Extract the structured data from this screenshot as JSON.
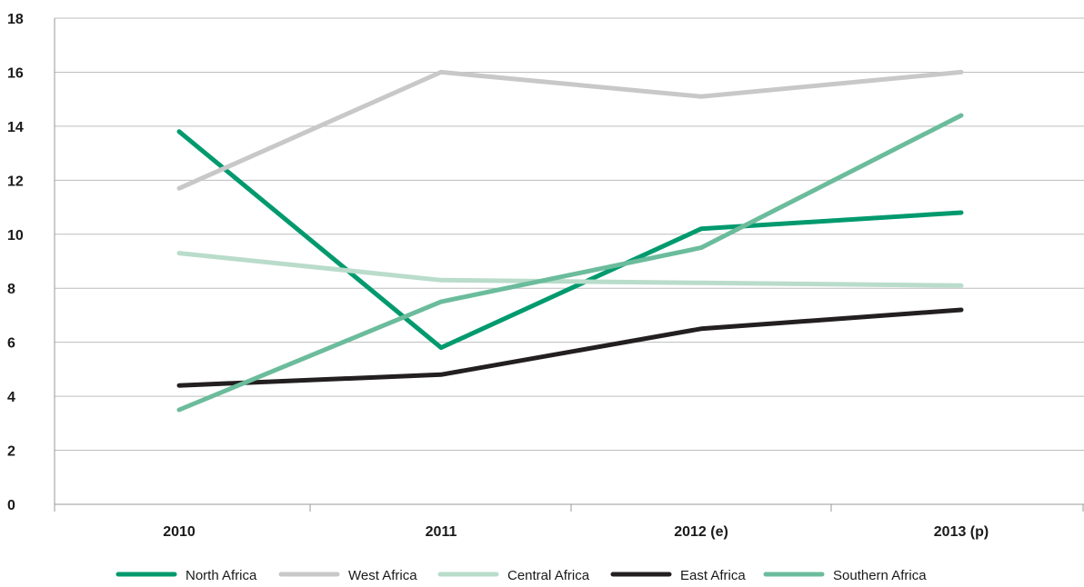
{
  "chart_data": {
    "type": "line",
    "categories": [
      "2010",
      "2011",
      "2012 (e)",
      "2013 (p)"
    ],
    "ylim": [
      0,
      18
    ],
    "yticks": [
      0,
      2,
      4,
      6,
      8,
      10,
      12,
      14,
      16,
      18
    ],
    "grid": true,
    "legend_position": "bottom",
    "series": [
      {
        "name": "North Africa",
        "color": "#009a6e",
        "values": [
          13.8,
          5.8,
          10.2,
          10.8
        ]
      },
      {
        "name": "West Africa",
        "color": "#c8c8c8",
        "values": [
          11.7,
          16.0,
          15.1,
          16.0
        ]
      },
      {
        "name": "Central Africa",
        "color": "#b9dccb",
        "values": [
          9.3,
          8.3,
          8.2,
          8.1
        ]
      },
      {
        "name": "East Africa",
        "color": "#231f20",
        "values": [
          4.4,
          4.8,
          6.5,
          7.2
        ]
      },
      {
        "name": "Southern Africa",
        "color": "#6bbc9c",
        "values": [
          3.5,
          7.5,
          9.5,
          14.4
        ]
      }
    ]
  }
}
